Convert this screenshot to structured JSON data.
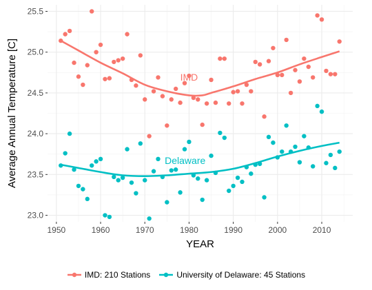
{
  "chart_data": {
    "type": "scatter",
    "xlabel": "YEAR",
    "ylabel": "Average Annual Temperature [C]",
    "xlim": [
      1948,
      2017
    ],
    "ylim": [
      22.92,
      25.58
    ],
    "x_ticks": [
      1950,
      1960,
      1970,
      1980,
      1990,
      2000,
      2010
    ],
    "y_ticks": [
      23.0,
      23.5,
      24.0,
      24.5,
      25.0,
      25.5
    ],
    "grid": true,
    "legend_position": "bottom",
    "series": [
      {
        "name": "IMD: 210 Stations",
        "label": "IMD",
        "color": "#F8766D",
        "points": [
          [
            1951,
            25.14
          ],
          [
            1952,
            25.22
          ],
          [
            1953,
            25.26
          ],
          [
            1954,
            24.87
          ],
          [
            1955,
            24.7
          ],
          [
            1956,
            24.6
          ],
          [
            1957,
            24.84
          ],
          [
            1958,
            25.5
          ],
          [
            1959,
            25.0
          ],
          [
            1960,
            25.09
          ],
          [
            1961,
            24.67
          ],
          [
            1962,
            24.68
          ],
          [
            1963,
            24.88
          ],
          [
            1964,
            24.9
          ],
          [
            1965,
            24.92
          ],
          [
            1966,
            25.22
          ],
          [
            1967,
            24.66
          ],
          [
            1968,
            24.59
          ],
          [
            1969,
            24.96
          ],
          [
            1970,
            24.42
          ],
          [
            1971,
            23.97
          ],
          [
            1972,
            24.52
          ],
          [
            1973,
            24.69
          ],
          [
            1974,
            24.46
          ],
          [
            1975,
            24.1
          ],
          [
            1976,
            24.42
          ],
          [
            1977,
            24.55
          ],
          [
            1978,
            24.38
          ],
          [
            1979,
            24.62
          ],
          [
            1980,
            24.71
          ],
          [
            1981,
            24.44
          ],
          [
            1982,
            24.42
          ],
          [
            1983,
            24.11
          ],
          [
            1984,
            24.37
          ],
          [
            1985,
            24.66
          ],
          [
            1986,
            24.38
          ],
          [
            1987,
            24.92
          ],
          [
            1988,
            24.92
          ],
          [
            1989,
            24.37
          ],
          [
            1990,
            24.51
          ],
          [
            1991,
            24.52
          ],
          [
            1992,
            24.37
          ],
          [
            1993,
            24.6
          ],
          [
            1994,
            24.52
          ],
          [
            1995,
            24.88
          ],
          [
            1996,
            24.85
          ],
          [
            1997,
            24.21
          ],
          [
            1998,
            24.89
          ],
          [
            1999,
            25.05
          ],
          [
            2000,
            24.72
          ],
          [
            2001,
            24.72
          ],
          [
            2002,
            25.15
          ],
          [
            2003,
            24.5
          ],
          [
            2004,
            24.78
          ],
          [
            2005,
            24.64
          ],
          [
            2006,
            24.92
          ],
          [
            2007,
            24.82
          ],
          [
            2008,
            24.69
          ],
          [
            2009,
            25.45
          ],
          [
            2010,
            25.4
          ],
          [
            2011,
            24.77
          ],
          [
            2012,
            24.73
          ],
          [
            2013,
            24.73
          ],
          [
            2014,
            25.13
          ]
        ],
        "trend": [
          [
            1951,
            25.14
          ],
          [
            1955,
            25.02
          ],
          [
            1960,
            24.87
          ],
          [
            1965,
            24.74
          ],
          [
            1970,
            24.6
          ],
          [
            1975,
            24.52
          ],
          [
            1980,
            24.47
          ],
          [
            1983,
            24.47
          ],
          [
            1985,
            24.5
          ],
          [
            1990,
            24.58
          ],
          [
            1995,
            24.67
          ],
          [
            2000,
            24.75
          ],
          [
            2005,
            24.85
          ],
          [
            2010,
            24.94
          ],
          [
            2014,
            25.01
          ]
        ]
      },
      {
        "name": "University of Delaware: 45 Stations",
        "label": "Delaware",
        "color": "#00BFC4",
        "points": [
          [
            1951,
            23.61
          ],
          [
            1952,
            23.76
          ],
          [
            1953,
            24.0
          ],
          [
            1954,
            23.56
          ],
          [
            1955,
            23.36
          ],
          [
            1956,
            23.32
          ],
          [
            1957,
            23.2
          ],
          [
            1958,
            23.61
          ],
          [
            1959,
            23.66
          ],
          [
            1960,
            23.69
          ],
          [
            1961,
            23.0
          ],
          [
            1962,
            22.98
          ],
          [
            1963,
            23.47
          ],
          [
            1964,
            23.43
          ],
          [
            1965,
            23.46
          ],
          [
            1966,
            23.81
          ],
          [
            1967,
            23.4
          ],
          [
            1968,
            23.27
          ],
          [
            1969,
            23.88
          ],
          [
            1970,
            23.43
          ],
          [
            1971,
            22.96
          ],
          [
            1972,
            23.54
          ],
          [
            1973,
            23.69
          ],
          [
            1974,
            23.47
          ],
          [
            1975,
            23.16
          ],
          [
            1976,
            23.55
          ],
          [
            1977,
            23.56
          ],
          [
            1978,
            23.28
          ],
          [
            1979,
            23.81
          ],
          [
            1980,
            23.9
          ],
          [
            1981,
            23.49
          ],
          [
            1982,
            23.45
          ],
          [
            1983,
            23.19
          ],
          [
            1984,
            23.43
          ],
          [
            1985,
            23.73
          ],
          [
            1986,
            23.52
          ],
          [
            1987,
            24.01
          ],
          [
            1988,
            23.95
          ],
          [
            1989,
            23.3
          ],
          [
            1990,
            23.36
          ],
          [
            1991,
            23.46
          ],
          [
            1992,
            23.41
          ],
          [
            1993,
            23.59
          ],
          [
            1994,
            23.51
          ],
          [
            1995,
            23.62
          ],
          [
            1996,
            23.63
          ],
          [
            1997,
            23.22
          ],
          [
            1998,
            23.96
          ],
          [
            1999,
            23.89
          ],
          [
            2000,
            23.71
          ],
          [
            2001,
            23.78
          ],
          [
            2002,
            24.1
          ],
          [
            2003,
            23.78
          ],
          [
            2004,
            23.84
          ],
          [
            2005,
            23.65
          ],
          [
            2006,
            23.97
          ],
          [
            2007,
            23.83
          ],
          [
            2008,
            23.6
          ],
          [
            2009,
            24.34
          ],
          [
            2010,
            24.27
          ],
          [
            2011,
            23.64
          ],
          [
            2012,
            23.74
          ],
          [
            2013,
            23.58
          ],
          [
            2014,
            23.78
          ]
        ],
        "trend": [
          [
            1951,
            23.62
          ],
          [
            1955,
            23.58
          ],
          [
            1960,
            23.53
          ],
          [
            1965,
            23.49
          ],
          [
            1970,
            23.48
          ],
          [
            1975,
            23.49
          ],
          [
            1980,
            23.51
          ],
          [
            1985,
            23.53
          ],
          [
            1990,
            23.57
          ],
          [
            1995,
            23.64
          ],
          [
            2000,
            23.72
          ],
          [
            2005,
            23.79
          ],
          [
            2010,
            23.85
          ],
          [
            2014,
            23.89
          ]
        ]
      }
    ]
  }
}
